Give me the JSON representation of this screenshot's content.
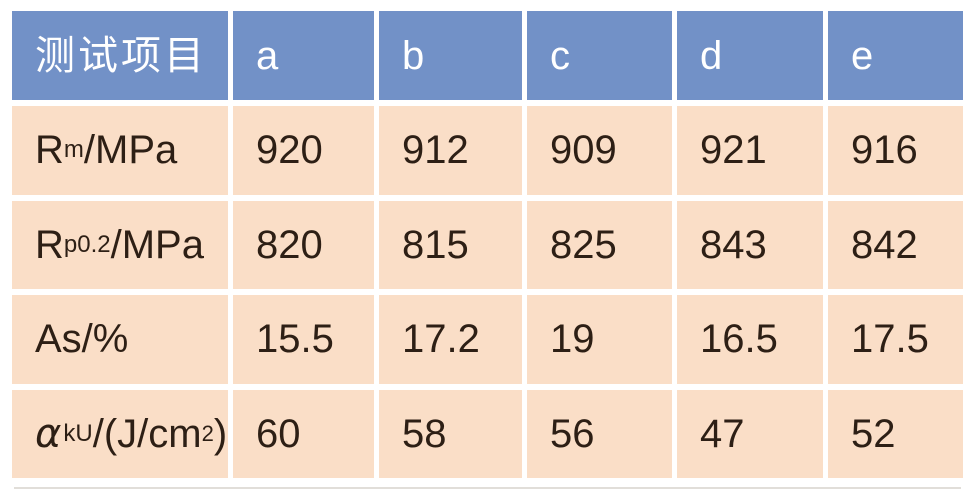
{
  "colors": {
    "page-bg": "#ffffff",
    "header-bg": "#7291c7",
    "header-text": "#ffffff",
    "row-bg": "#fadec7",
    "body-text": "#2d1f15",
    "bottom-line": "#d9d6d0"
  },
  "table": {
    "header": {
      "first": "测试项目",
      "samples": [
        "a",
        "b",
        "c",
        "d",
        "e"
      ]
    },
    "rows": [
      {
        "label_segments": [
          {
            "t": "R"
          },
          {
            "t": "m",
            "style": "sub"
          },
          {
            "t": "/MPa"
          }
        ],
        "values": [
          "920",
          "912",
          "909",
          "921",
          "916"
        ]
      },
      {
        "label_segments": [
          {
            "t": "R"
          },
          {
            "t": "p0.2",
            "style": "sub"
          },
          {
            "t": "/MPa"
          }
        ],
        "values": [
          "820",
          "815",
          "825",
          "843",
          "842"
        ]
      },
      {
        "label_segments": [
          {
            "t": "As/%"
          }
        ],
        "values": [
          "15.5",
          "17.2",
          "19",
          "16.5",
          "17.5"
        ]
      },
      {
        "label_segments": [
          {
            "t": "α",
            "style": "italic"
          },
          {
            "t": "kU",
            "style": "sub"
          },
          {
            "t": "/(J/cm"
          },
          {
            "t": "2",
            "style": "sup"
          },
          {
            "t": ")"
          }
        ],
        "values": [
          "60",
          "58",
          "56",
          "47",
          "52"
        ]
      }
    ]
  },
  "chart_data": {
    "type": "table",
    "columns": [
      "测试项目",
      "a",
      "b",
      "c",
      "d",
      "e"
    ],
    "rows": [
      [
        "Rm/MPa",
        "920",
        "912",
        "909",
        "921",
        "916"
      ],
      [
        "Rp0.2/MPa",
        "820",
        "815",
        "825",
        "843",
        "842"
      ],
      [
        "As/%",
        "15.5",
        "17.2",
        "19",
        "16.5",
        "17.5"
      ],
      [
        "αkU/(J/cm²)",
        "60",
        "58",
        "56",
        "47",
        "52"
      ]
    ]
  }
}
